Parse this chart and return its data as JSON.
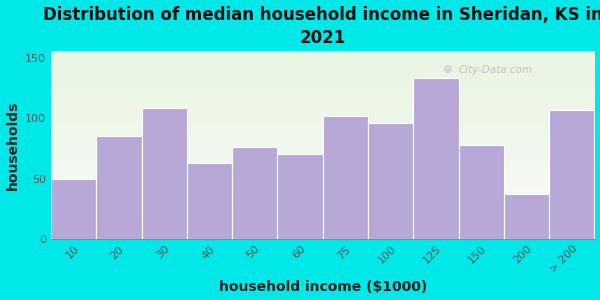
{
  "title": "Distribution of median household income in Sheridan, KS in\n2021",
  "xlabel": "household income ($1000)",
  "ylabel": "households",
  "categories": [
    "10",
    "20",
    "30",
    "40",
    "50",
    "60",
    "75",
    "100",
    "125",
    "150",
    "200",
    "> 200"
  ],
  "values": [
    50,
    85,
    108,
    63,
    76,
    70,
    102,
    96,
    133,
    78,
    37,
    107
  ],
  "bar_color": "#b8a8d8",
  "bar_edgecolor": "#ffffff",
  "ylim": [
    0,
    155
  ],
  "yticks": [
    0,
    50,
    100,
    150
  ],
  "background_outer": "#00e8e8",
  "background_inner_topleft": "#e8f5e0",
  "background_inner_bottomright": "#f8f8f8",
  "title_fontsize": 12,
  "axis_label_fontsize": 10,
  "tick_fontsize": 8,
  "watermark_text": "City-Data.com",
  "bar_width": 1.0
}
